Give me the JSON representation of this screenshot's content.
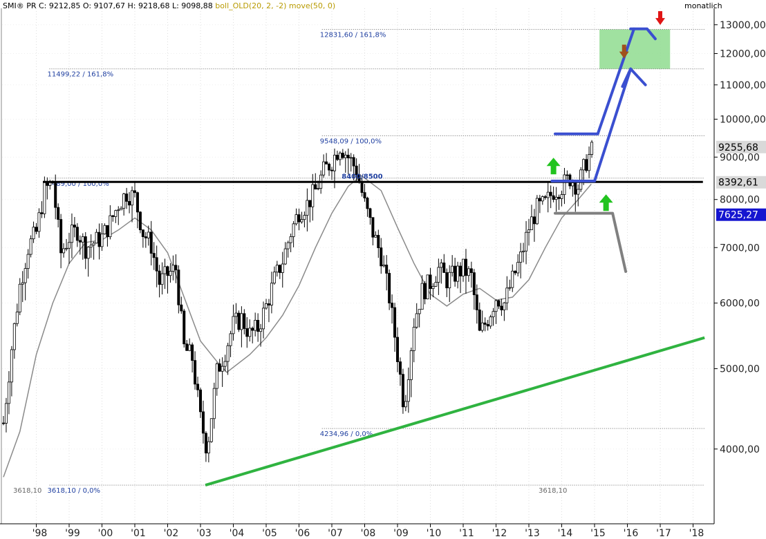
{
  "header": {
    "symbol": "SMI® PR",
    "ohlc": "C: 9212,85  O: 9107,67  H: 9218,68  L: 9098,88",
    "indicator": "boll_OLD(20, 2, -2) move(50, 0)",
    "interval": "monatlich"
  },
  "chart_data": {
    "type": "candlestick",
    "y_scale": "log",
    "ylim": [
      3300,
      13400
    ],
    "y_ticks": [
      "13000,00",
      "12000,00",
      "11000,00",
      "10000,00",
      "9000,00",
      "8000,00",
      "7000,00",
      "6000,00",
      "5000,00",
      "4000,00"
    ],
    "x_ticks": [
      "'98",
      "'99",
      "'00",
      "'01",
      "'02",
      "'03",
      "'04",
      "'05",
      "'06",
      "'07",
      "'08",
      "'09",
      "'10",
      "'11",
      "'12",
      "'13",
      "'14",
      "'15",
      "'16",
      "'17",
      "'18"
    ],
    "closes": [
      [
        1997.0,
        4300
      ],
      [
        1997.25,
        5300
      ],
      [
        1997.5,
        6300
      ],
      [
        1997.75,
        7000
      ],
      [
        1998.0,
        7300
      ],
      [
        1998.25,
        8200
      ],
      [
        1998.5,
        8400
      ],
      [
        1998.75,
        6900
      ],
      [
        1999.0,
        7200
      ],
      [
        1999.25,
        7350
      ],
      [
        1999.5,
        7000
      ],
      [
        1999.75,
        7100
      ],
      [
        2000.0,
        7200
      ],
      [
        2000.25,
        7500
      ],
      [
        2000.5,
        7900
      ],
      [
        2000.75,
        8150
      ],
      [
        2001.0,
        8050
      ],
      [
        2001.25,
        7300
      ],
      [
        2001.5,
        7050
      ],
      [
        2001.75,
        6350
      ],
      [
        2002.0,
        6500
      ],
      [
        2002.25,
        6600
      ],
      [
        2002.5,
        5300
      ],
      [
        2002.75,
        5150
      ],
      [
        2003.0,
        4350
      ],
      [
        2003.2,
        4000
      ],
      [
        2003.5,
        4950
      ],
      [
        2003.75,
        5250
      ],
      [
        2004.0,
        5650
      ],
      [
        2004.25,
        5750
      ],
      [
        2004.5,
        5500
      ],
      [
        2004.75,
        5600
      ],
      [
        2005.0,
        5950
      ],
      [
        2005.25,
        6400
      ],
      [
        2005.5,
        6750
      ],
      [
        2005.75,
        7300
      ],
      [
        2006.0,
        7750
      ],
      [
        2006.25,
        7900
      ],
      [
        2006.5,
        8200
      ],
      [
        2006.75,
        8650
      ],
      [
        2007.0,
        8900
      ],
      [
        2007.25,
        9300
      ],
      [
        2007.5,
        9000
      ],
      [
        2007.75,
        8700
      ],
      [
        2008.0,
        7900
      ],
      [
        2008.25,
        7300
      ],
      [
        2008.5,
        6850
      ],
      [
        2008.75,
        6100
      ],
      [
        2009.0,
        5200
      ],
      [
        2009.2,
        4500
      ],
      [
        2009.5,
        5700
      ],
      [
        2009.75,
        6200
      ],
      [
        2010.0,
        6350
      ],
      [
        2010.25,
        6600
      ],
      [
        2010.5,
        6400
      ],
      [
        2010.75,
        6500
      ],
      [
        2011.0,
        6600
      ],
      [
        2011.25,
        6450
      ],
      [
        2011.5,
        5500
      ],
      [
        2011.75,
        5750
      ],
      [
        2012.0,
        6100
      ],
      [
        2012.25,
        6000
      ],
      [
        2012.5,
        6400
      ],
      [
        2012.75,
        6800
      ],
      [
        2013.0,
        7400
      ],
      [
        2013.25,
        7800
      ],
      [
        2013.5,
        7900
      ],
      [
        2013.75,
        8200
      ],
      [
        2014.0,
        8300
      ],
      [
        2014.25,
        8500
      ],
      [
        2014.5,
        8300
      ],
      [
        2014.75,
        8900
      ],
      [
        2014.95,
        9200
      ]
    ],
    "moving_average_50": [
      [
        1997.0,
        3700
      ],
      [
        1997.5,
        4200
      ],
      [
        1998.0,
        5200
      ],
      [
        1998.5,
        6000
      ],
      [
        1999.0,
        6700
      ],
      [
        1999.5,
        7100
      ],
      [
        2000.0,
        7150
      ],
      [
        2000.5,
        7350
      ],
      [
        2001.0,
        7600
      ],
      [
        2001.5,
        7350
      ],
      [
        2002.0,
        6900
      ],
      [
        2002.5,
        6100
      ],
      [
        2003.0,
        5400
      ],
      [
        2003.5,
        5100
      ],
      [
        2003.8,
        4950
      ],
      [
        2004.5,
        5200
      ],
      [
        2005.0,
        5450
      ],
      [
        2005.5,
        5800
      ],
      [
        2006.0,
        6300
      ],
      [
        2006.5,
        7000
      ],
      [
        2007.0,
        7700
      ],
      [
        2007.5,
        8300
      ],
      [
        2007.9,
        8550
      ],
      [
        2008.5,
        8200
      ],
      [
        2009.0,
        7400
      ],
      [
        2009.5,
        6700
      ],
      [
        2010.0,
        6150
      ],
      [
        2010.5,
        5950
      ],
      [
        2011.0,
        6150
      ],
      [
        2011.5,
        6250
      ],
      [
        2012.0,
        6050
      ],
      [
        2012.5,
        6100
      ],
      [
        2013.0,
        6400
      ],
      [
        2013.5,
        7000
      ],
      [
        2014.0,
        7600
      ],
      [
        2014.5,
        8000
      ],
      [
        2014.9,
        8350
      ]
    ],
    "support_trendline": {
      "x": [
        2003.15,
        2018.35
      ],
      "y": [
        3618.1,
        5450
      ],
      "color": "#2fb340"
    },
    "resistance_line": {
      "y": 8400,
      "x": [
        1998.2,
        2018.3
      ],
      "label": "8400/8500",
      "color": "#000000"
    },
    "fib_levels": [
      {
        "label": "12831,60 / 161,8%",
        "value": 12831.6,
        "x": [
          2006.7,
          2018.35
        ]
      },
      {
        "label": "11499,22 / 161,8%",
        "value": 11499.22,
        "x": [
          1998.4,
          2018.35
        ]
      },
      {
        "label": "9548,09 / 100,0%",
        "value": 9548.09,
        "x": [
          2006.7,
          2018.35
        ]
      },
      {
        "label": "8489,00 / 100,0%",
        "value": 8489.0,
        "x": [
          1998.4,
          2018.35
        ]
      },
      {
        "label": "4234,96 / 0,0%",
        "value": 4234.96,
        "x": [
          2006.7,
          2018.35
        ]
      },
      {
        "label": "3618,10 / 0,0%",
        "value": 3618.1,
        "x": [
          1998.4,
          2018.35
        ]
      }
    ],
    "gray_labels": [
      {
        "label": "3618,10",
        "value": 3618.1,
        "x": 1997.0
      },
      {
        "label": "3618,10",
        "value": 3618.1,
        "x": 2013.0
      }
    ],
    "target_zone": {
      "x": [
        2015.15,
        2017.3
      ],
      "y": [
        11499.22,
        12831.6
      ],
      "color": "#8fdc8f"
    },
    "price_tags": [
      {
        "label": "9255,68",
        "value": 9255.68,
        "bg": "#d9d9d9",
        "fg": "#000000"
      },
      {
        "label": "8392,61",
        "value": 8392.61,
        "bg": "#d9d9d9",
        "fg": "#000000"
      },
      {
        "label": "7625,27",
        "value": 7625.27,
        "bg": "#1515d0",
        "fg": "#ffffff"
      }
    ],
    "colors": {
      "candles": "#000000",
      "ma": "#8a8a8a",
      "bull_path": "#3a4fd0",
      "bear_path": "#808080",
      "up_arrow": "#22c31f",
      "down_arrow_red": "#e01515",
      "down_arrow_brown": "#a0521d"
    }
  }
}
